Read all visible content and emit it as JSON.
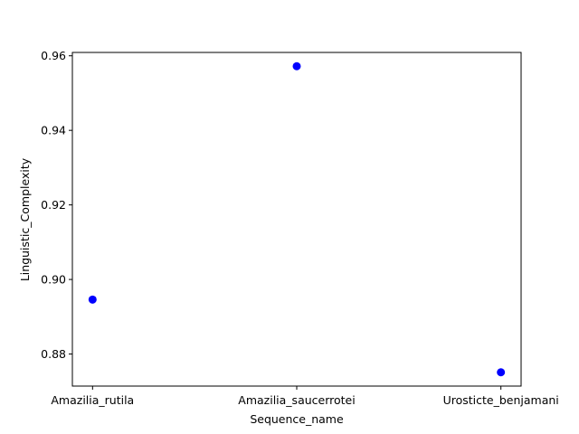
{
  "chart_data": {
    "type": "scatter",
    "title": "",
    "xlabel": "Sequence_name",
    "ylabel": "Linguistic_Complexity",
    "categories": [
      "Amazilia_rutila",
      "Amazilia_saucerrotei",
      "Urosticte_benjamani"
    ],
    "series": [
      {
        "values": [
          0.8946,
          0.9572,
          0.8751
        ]
      }
    ],
    "ylim": [
      0.8714,
      0.9609
    ],
    "yticks": [
      0.88,
      0.9,
      0.92,
      0.94,
      0.96
    ],
    "ytick_labels": [
      "0.88",
      "0.90",
      "0.92",
      "0.94",
      "0.96"
    ],
    "marker_color": "#0000ff",
    "grid": false,
    "legend": "none"
  }
}
